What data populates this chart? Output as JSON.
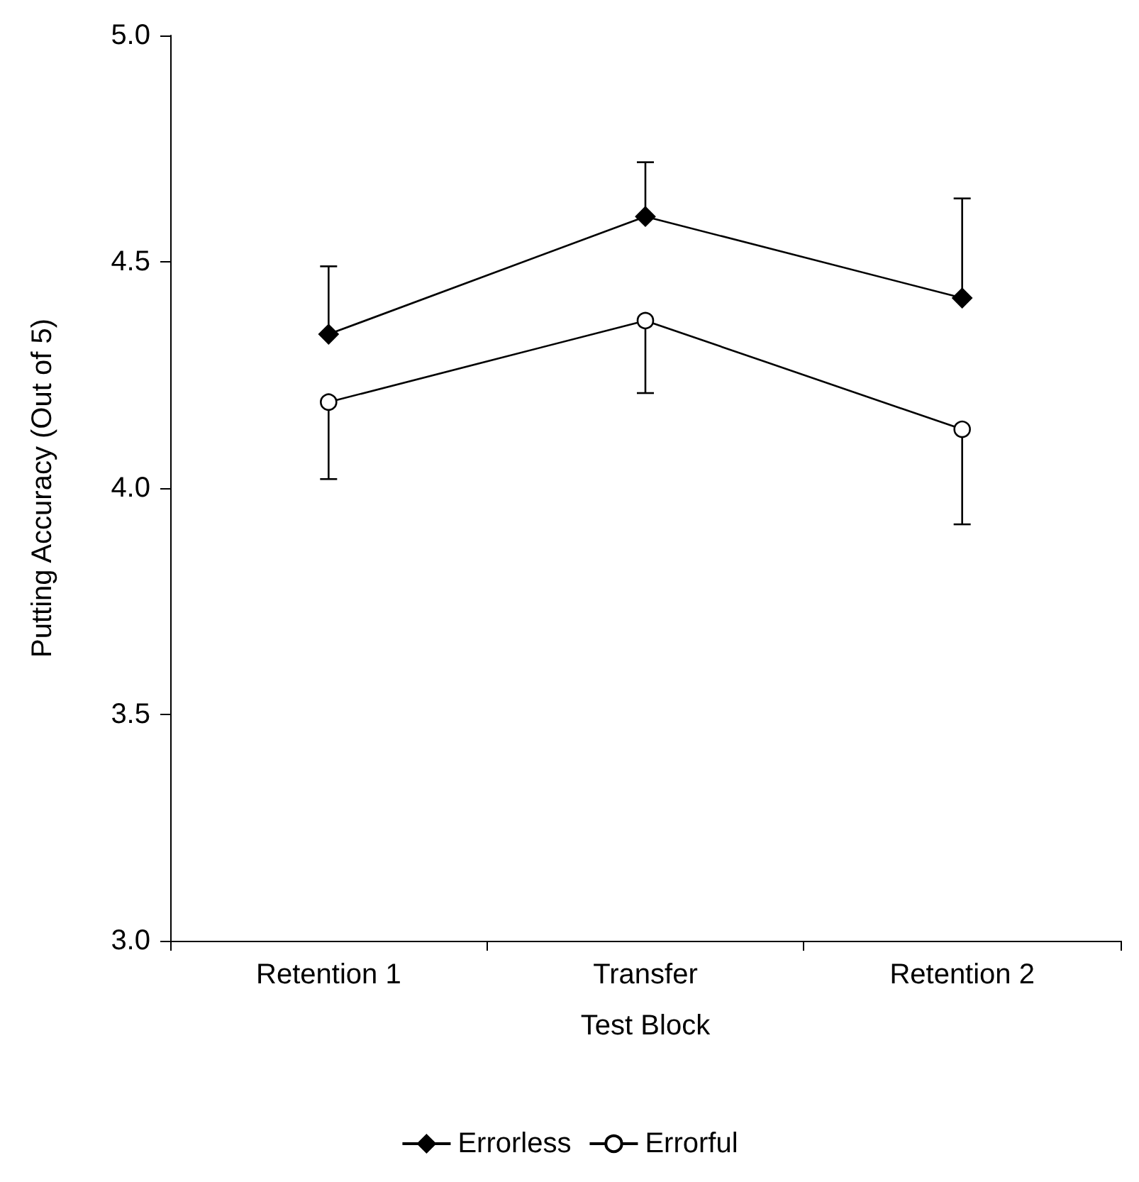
{
  "chart_data": {
    "type": "line",
    "xlabel": "Test Block",
    "ylabel": "Putting Accuracy (Out of 5)",
    "categories": [
      "Retention 1",
      "Transfer",
      "Retention 2"
    ],
    "series": [
      {
        "name": "Errorless",
        "color": "#000000",
        "marker": "diamond",
        "values": [
          4.34,
          4.6,
          4.42
        ],
        "errors": [
          [
            4.34,
            4.49
          ],
          [
            4.6,
            4.72
          ],
          [
            4.42,
            4.64
          ]
        ]
      },
      {
        "name": "Errorful",
        "color": "#ffffff",
        "marker": "circle",
        "values": [
          4.19,
          4.37,
          4.13
        ],
        "errors": [
          [
            4.02,
            4.19
          ],
          [
            4.21,
            4.37
          ],
          [
            3.92,
            4.13
          ]
        ]
      }
    ],
    "ylim": [
      3,
      5
    ],
    "yticks": [
      {
        "value": 3,
        "label": "3.0"
      },
      {
        "value": 3.5,
        "label": "3.5"
      },
      {
        "value": 4,
        "label": "4.0"
      },
      {
        "value": 4.5,
        "label": "4.5"
      },
      {
        "value": 5,
        "label": "5.0"
      }
    ],
    "grid": false,
    "legend": "bottom",
    "line_style": "solid"
  }
}
